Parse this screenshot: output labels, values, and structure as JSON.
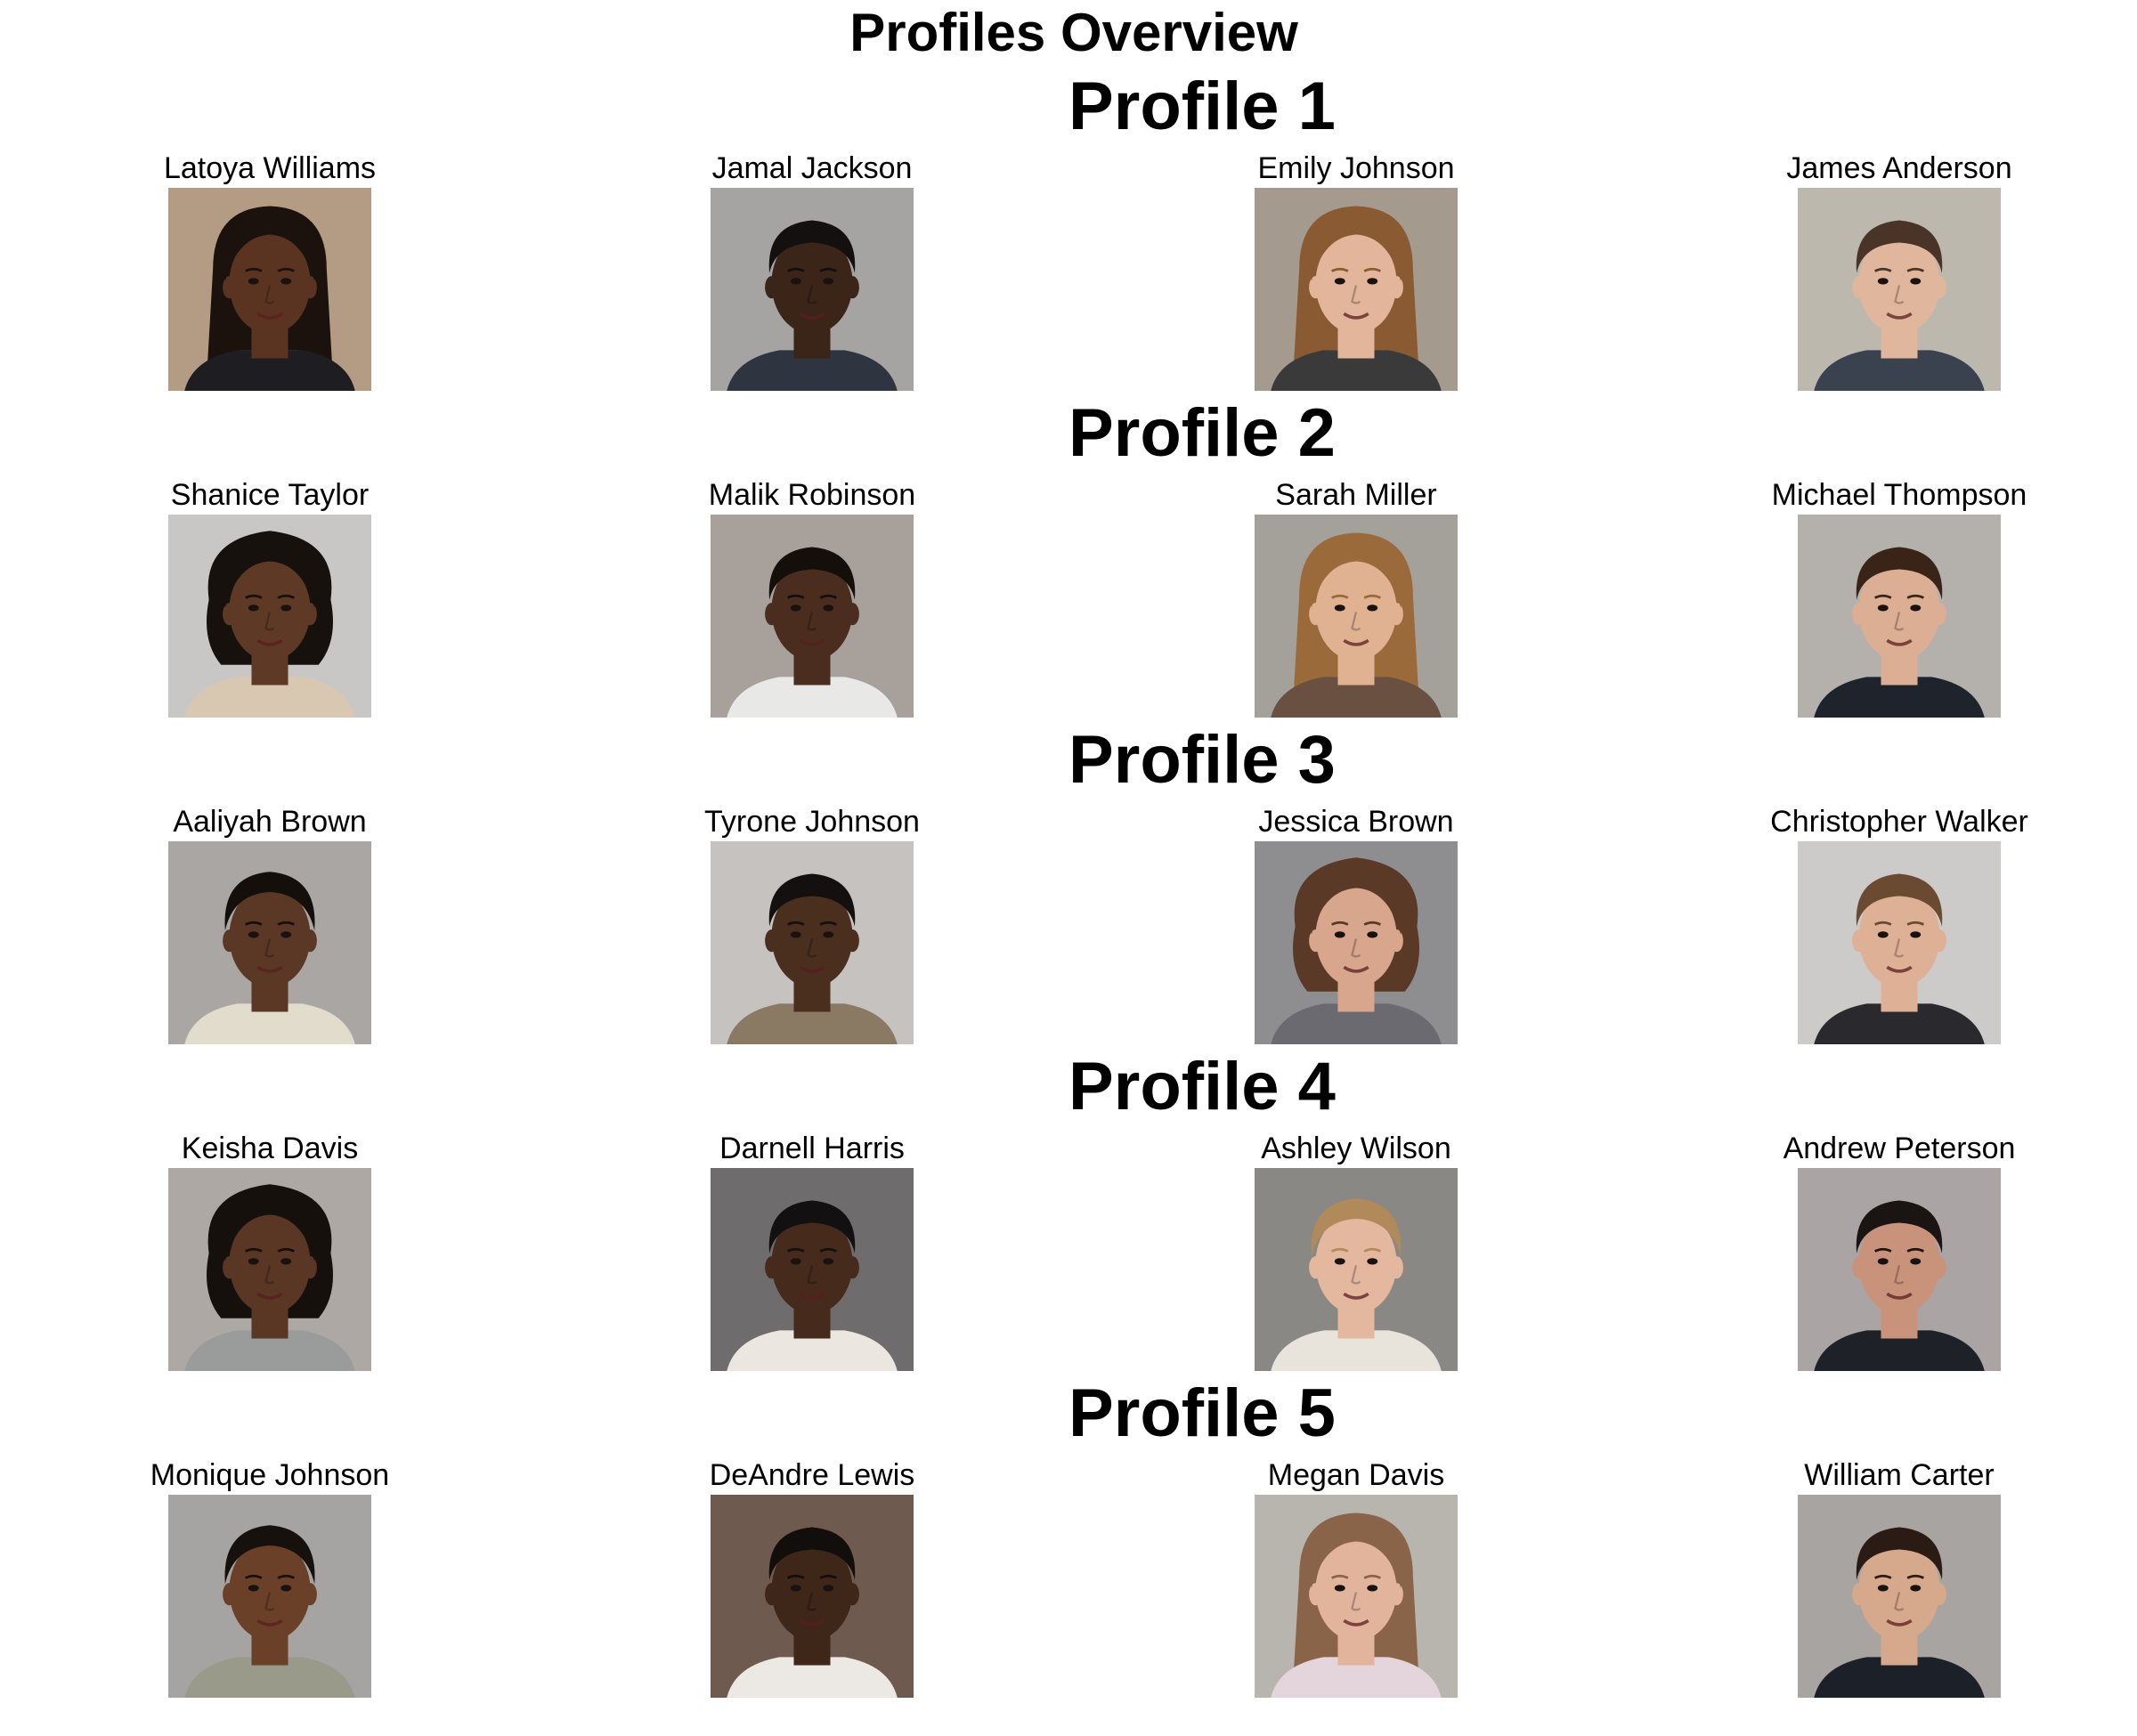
{
  "title": "Profiles Overview",
  "colors": {
    "background": "#ffffff",
    "text": "#000000"
  },
  "profiles": [
    {
      "heading": "Profile 1",
      "people": [
        {
          "name": "Latoya Williams",
          "photo_icon": "woman-portrait-icon",
          "photo_bg": "#b49c84",
          "skin": "#5a3420",
          "hair": "#1b120d",
          "hair_style": "long",
          "shirt": "#1e1e22"
        },
        {
          "name": "Jamal Jackson",
          "photo_icon": "man-portrait-icon",
          "photo_bg": "#a6a4a2",
          "skin": "#3b2418",
          "hair": "#141010",
          "hair_style": "short",
          "shirt": "#2e3440"
        },
        {
          "name": "Emily Johnson",
          "photo_icon": "woman-portrait-icon",
          "photo_bg": "#a49a8e",
          "skin": "#e3b59a",
          "hair": "#8a5a32",
          "hair_style": "long",
          "shirt": "#3a3a3a"
        },
        {
          "name": "James Anderson",
          "photo_icon": "man-portrait-icon",
          "photo_bg": "#bdb8ae",
          "skin": "#e0b69c",
          "hair": "#4a3428",
          "hair_style": "short",
          "shirt": "#3a4250"
        }
      ]
    },
    {
      "heading": "Profile 2",
      "people": [
        {
          "name": "Shanice Taylor",
          "photo_icon": "woman-portrait-icon",
          "photo_bg": "#c9c7c6",
          "skin": "#5e3a26",
          "hair": "#17110e",
          "hair_style": "curly",
          "shirt": "#d8c8b2"
        },
        {
          "name": "Malik Robinson",
          "photo_icon": "man-portrait-icon",
          "photo_bg": "#a8a09a",
          "skin": "#4a2d1e",
          "hair": "#150f0c",
          "hair_style": "short",
          "shirt": "#e8e8e6"
        },
        {
          "name": "Sarah Miller",
          "photo_icon": "woman-portrait-icon",
          "photo_bg": "#a4a09a",
          "skin": "#e0b292",
          "hair": "#9a6a3a",
          "hair_style": "long",
          "shirt": "#6a5040"
        },
        {
          "name": "Michael Thompson",
          "photo_icon": "man-portrait-icon",
          "photo_bg": "#b4b0ac",
          "skin": "#dcae94",
          "hair": "#3a2418",
          "hair_style": "short",
          "shirt": "#1e232c"
        }
      ]
    },
    {
      "heading": "Profile 3",
      "people": [
        {
          "name": "Aaliyah Brown",
          "photo_icon": "woman-portrait-icon",
          "photo_bg": "#a9a6a4",
          "skin": "#5b3826",
          "hair": "#150f0c",
          "hair_style": "bun",
          "shirt": "#e2dccc"
        },
        {
          "name": "Tyrone Johnson",
          "photo_icon": "man-portrait-icon",
          "photo_bg": "#c6c2c0",
          "skin": "#4a2e1e",
          "hair": "#141010",
          "hair_style": "short",
          "shirt": "#8a7a64"
        },
        {
          "name": "Jessica Brown",
          "photo_icon": "woman-portrait-icon",
          "photo_bg": "#8e8e90",
          "skin": "#d8a68c",
          "hair": "#5a3a26",
          "hair_style": "curly",
          "shirt": "#6a6a70"
        },
        {
          "name": "Christopher Walker",
          "photo_icon": "man-portrait-icon",
          "photo_bg": "#cdcbc9",
          "skin": "#deb096",
          "hair": "#6a4a30",
          "hair_style": "short",
          "shirt": "#2a2a2e"
        }
      ]
    },
    {
      "heading": "Profile 4",
      "people": [
        {
          "name": "Keisha Davis",
          "photo_icon": "woman-portrait-icon",
          "photo_bg": "#aea8a4",
          "skin": "#5a3624",
          "hair": "#16100d",
          "hair_style": "curly",
          "shirt": "#9a9c9c"
        },
        {
          "name": "Darnell Harris",
          "photo_icon": "man-portrait-icon",
          "photo_bg": "#6e6c6c",
          "skin": "#462a1c",
          "hair": "#121010",
          "hair_style": "short",
          "shirt": "#ece6e0"
        },
        {
          "name": "Ashley Wilson",
          "photo_icon": "woman-portrait-icon",
          "photo_bg": "#8a8884",
          "skin": "#e4b89e",
          "hair": "#b08a5a",
          "hair_style": "bun",
          "shirt": "#e8e4dc"
        },
        {
          "name": "Andrew Peterson",
          "photo_icon": "man-portrait-icon",
          "photo_bg": "#aaa4a4",
          "skin": "#c8937a",
          "hair": "#1a1412",
          "hair_style": "short",
          "shirt": "#1e2228"
        }
      ]
    },
    {
      "heading": "Profile 5",
      "people": [
        {
          "name": "Monique Johnson",
          "photo_icon": "woman-portrait-icon",
          "photo_bg": "#a6a4a2",
          "skin": "#6a4028",
          "hair": "#17110e",
          "hair_style": "bun",
          "shirt": "#9a9a8a"
        },
        {
          "name": "DeAndre Lewis",
          "photo_icon": "man-portrait-icon",
          "photo_bg": "#6e5a4e",
          "skin": "#3e2619",
          "hair": "#120e0c",
          "hair_style": "short",
          "shirt": "#ece8e4"
        },
        {
          "name": "Megan Davis",
          "photo_icon": "woman-portrait-icon",
          "photo_bg": "#b8b4ae",
          "skin": "#e2b49c",
          "hair": "#8a6448",
          "hair_style": "long",
          "shirt": "#e4d4dc"
        },
        {
          "name": "William Carter",
          "photo_icon": "man-portrait-icon",
          "photo_bg": "#a8a4a2",
          "skin": "#d6a88c",
          "hair": "#2a1c14",
          "hair_style": "short",
          "shirt": "#1c2028"
        }
      ]
    }
  ]
}
